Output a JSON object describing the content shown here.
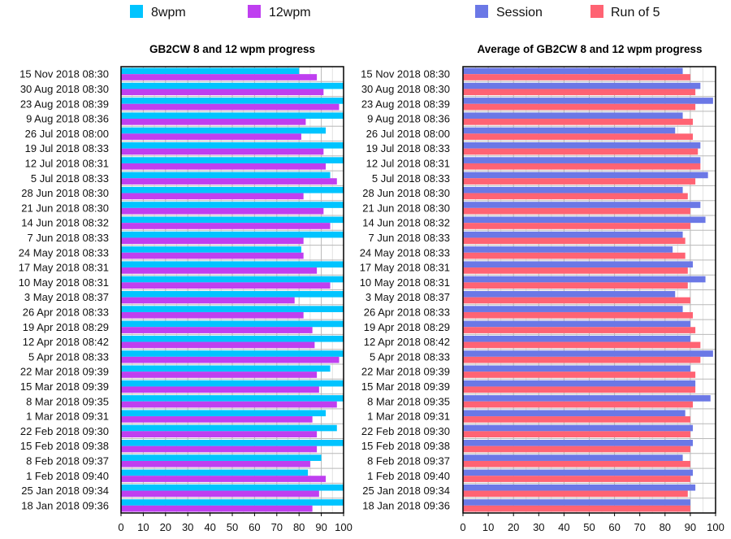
{
  "chart_data": [
    {
      "type": "bar",
      "orientation": "horizontal",
      "title": "GB2CW 8 and 12 wpm progress",
      "xlabel": "",
      "ylabel": "",
      "xlim": [
        0,
        100
      ],
      "xticks": [
        0,
        10,
        20,
        30,
        40,
        50,
        60,
        70,
        80,
        90,
        100
      ],
      "grid": true,
      "legend_position": "top",
      "categories": [
        "15 Nov 2018 08:30",
        "30 Aug 2018 08:30",
        "23 Aug 2018 08:39",
        "9 Aug 2018 08:36",
        "26 Jul 2018 08:00",
        "19 Jul 2018 08:33",
        "12 Jul 2018 08:31",
        "5 Jul 2018 08:33",
        "28 Jun 2018 08:30",
        "21 Jun 2018 08:30",
        "14 Jun 2018 08:32",
        "7 Jun 2018 08:33",
        "24 May 2018 08:33",
        "17 May 2018 08:31",
        "10 May 2018 08:31",
        "3 May 2018 08:37",
        "26 Apr 2018 08:33",
        "19 Apr 2018 08:29",
        "12 Apr 2018 08:42",
        "5 Apr 2018 08:33",
        "22 Mar 2018 09:39",
        "15 Mar 2018 09:39",
        "8 Mar 2018 09:35",
        "1 Mar 2018 09:31",
        "22 Feb 2018 09:30",
        "15 Feb 2018 09:38",
        "8 Feb 2018 09:37",
        "1 Feb 2018 09:40",
        "25 Jan 2018 09:34",
        "18 Jan 2018 09:36"
      ],
      "series": [
        {
          "name": "8wpm",
          "color": "#00c4ff",
          "values": [
            80,
            100,
            100,
            100,
            92,
            100,
            100,
            94,
            100,
            100,
            100,
            100,
            81,
            100,
            100,
            100,
            100,
            100,
            100,
            100,
            94,
            100,
            100,
            92,
            97,
            100,
            90,
            84,
            100,
            100
          ]
        },
        {
          "name": "12wpm",
          "color": "#bf3ff0",
          "values": [
            88,
            91,
            98,
            83,
            81,
            91,
            92,
            97,
            82,
            91,
            94,
            82,
            82,
            88,
            94,
            78,
            82,
            86,
            87,
            98,
            88,
            89,
            97,
            86,
            88,
            88,
            85,
            92,
            89,
            86
          ]
        }
      ]
    },
    {
      "type": "bar",
      "orientation": "horizontal",
      "title": "Average of GB2CW 8 and 12 wpm progress",
      "xlabel": "",
      "ylabel": "",
      "xlim": [
        0,
        100
      ],
      "xticks": [
        0,
        10,
        20,
        30,
        40,
        50,
        60,
        70,
        80,
        90,
        100
      ],
      "grid": true,
      "legend_position": "top",
      "categories": [
        "15 Nov 2018 08:30",
        "30 Aug 2018 08:30",
        "23 Aug 2018 08:39",
        "9 Aug 2018 08:36",
        "26 Jul 2018 08:00",
        "19 Jul 2018 08:33",
        "12 Jul 2018 08:31",
        "5 Jul 2018 08:33",
        "28 Jun 2018 08:30",
        "21 Jun 2018 08:30",
        "14 Jun 2018 08:32",
        "7 Jun 2018 08:33",
        "24 May 2018 08:33",
        "17 May 2018 08:31",
        "10 May 2018 08:31",
        "3 May 2018 08:37",
        "26 Apr 2018 08:33",
        "19 Apr 2018 08:29",
        "12 Apr 2018 08:42",
        "5 Apr 2018 08:33",
        "22 Mar 2018 09:39",
        "15 Mar 2018 09:39",
        "8 Mar 2018 09:35",
        "1 Mar 2018 09:31",
        "22 Feb 2018 09:30",
        "15 Feb 2018 09:38",
        "8 Feb 2018 09:37",
        "1 Feb 2018 09:40",
        "25 Jan 2018 09:34",
        "18 Jan 2018 09:36"
      ],
      "series": [
        {
          "name": "Session",
          "color": "#6b78e6",
          "values": [
            87,
            94,
            99,
            87,
            84,
            94,
            94,
            97,
            87,
            94,
            96,
            87,
            83,
            91,
            96,
            84,
            87,
            90,
            90,
            99,
            90,
            92,
            98,
            88,
            91,
            91,
            87,
            91,
            92,
            90
          ]
        },
        {
          "name": "Run of 5",
          "color": "#ff6373",
          "values": [
            90,
            92,
            92,
            91,
            91,
            93,
            94,
            92,
            89,
            90,
            90,
            88,
            88,
            89,
            89,
            90,
            91,
            92,
            94,
            94,
            92,
            92,
            91,
            90,
            90,
            90,
            90,
            90,
            89,
            90
          ]
        }
      ]
    }
  ]
}
